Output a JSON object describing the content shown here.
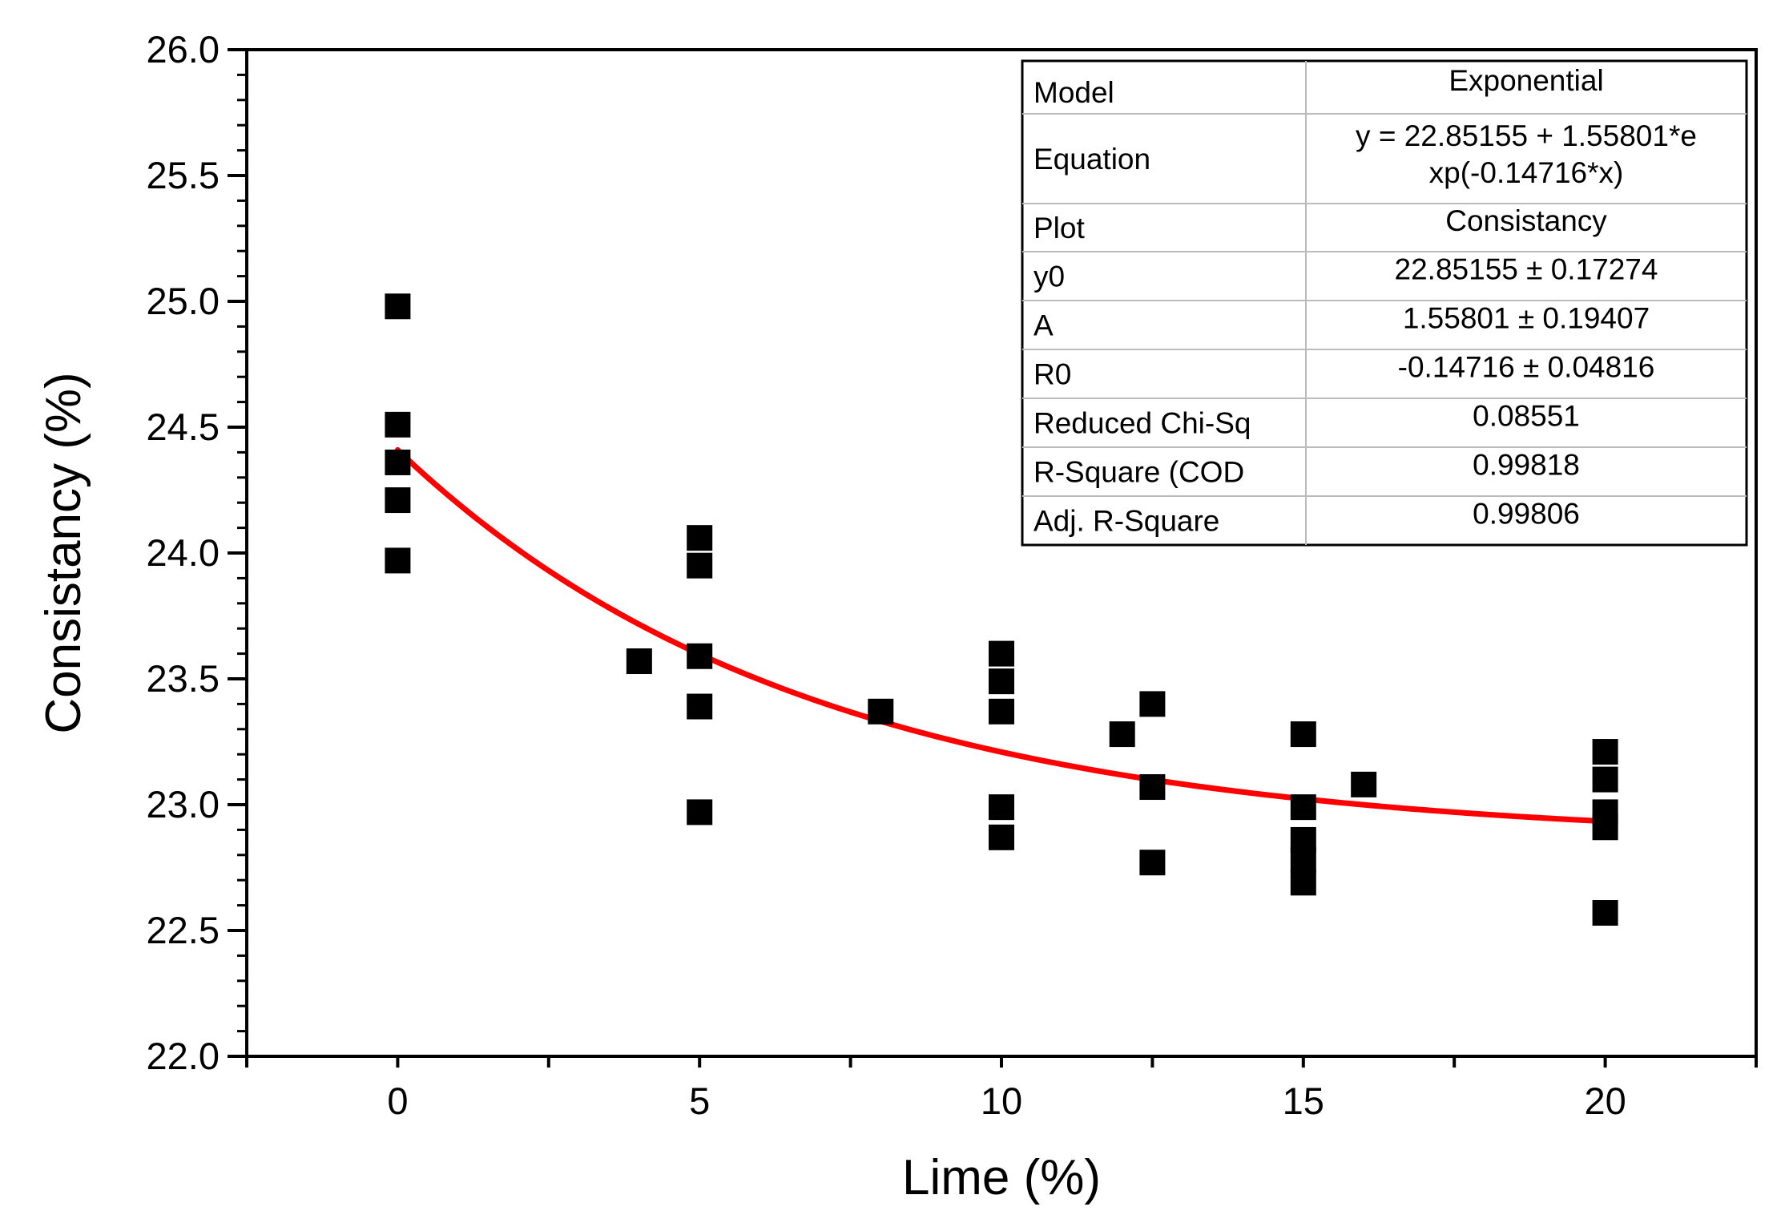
{
  "chart_data": {
    "type": "scatter",
    "title": "",
    "xlabel": "Lime (%)",
    "ylabel": "Consistancy (%)",
    "xlim": [
      -2.5,
      22.5
    ],
    "ylim": [
      22.0,
      26.0
    ],
    "xticks": [
      0,
      5,
      10,
      15,
      20
    ],
    "xtick_labels": [
      "0",
      "5",
      "10",
      "15",
      "20"
    ],
    "yticks": [
      22.0,
      22.5,
      23.0,
      23.5,
      24.0,
      24.5,
      25.0,
      25.5,
      26.0
    ],
    "ytick_labels": [
      "22.0",
      "22.5",
      "23.0",
      "23.5",
      "24.0",
      "24.5",
      "25.0",
      "25.5",
      "26.0"
    ],
    "grid": false,
    "series": [
      {
        "name": "Consistancy",
        "type": "scatter",
        "marker": "square",
        "color": "#000000",
        "points": [
          {
            "x": 0,
            "y": 24.98
          },
          {
            "x": 0,
            "y": 24.51
          },
          {
            "x": 0,
            "y": 24.36
          },
          {
            "x": 0,
            "y": 24.21
          },
          {
            "x": 0,
            "y": 23.97
          },
          {
            "x": 4,
            "y": 23.57
          },
          {
            "x": 5,
            "y": 24.06
          },
          {
            "x": 5,
            "y": 23.95
          },
          {
            "x": 5,
            "y": 23.59
          },
          {
            "x": 5,
            "y": 23.39
          },
          {
            "x": 5,
            "y": 22.97
          },
          {
            "x": 8,
            "y": 23.37
          },
          {
            "x": 10,
            "y": 23.6
          },
          {
            "x": 10,
            "y": 23.49
          },
          {
            "x": 10,
            "y": 23.37
          },
          {
            "x": 10,
            "y": 22.99
          },
          {
            "x": 10,
            "y": 22.87
          },
          {
            "x": 12,
            "y": 23.28
          },
          {
            "x": 12.5,
            "y": 23.4
          },
          {
            "x": 12.5,
            "y": 23.07
          },
          {
            "x": 12.5,
            "y": 22.77
          },
          {
            "x": 15,
            "y": 23.28
          },
          {
            "x": 15,
            "y": 22.99
          },
          {
            "x": 15,
            "y": 22.86
          },
          {
            "x": 15,
            "y": 22.78
          },
          {
            "x": 15,
            "y": 22.69
          },
          {
            "x": 16,
            "y": 23.08
          },
          {
            "x": 20,
            "y": 23.21
          },
          {
            "x": 20,
            "y": 23.1
          },
          {
            "x": 20,
            "y": 22.97
          },
          {
            "x": 20,
            "y": 22.91
          },
          {
            "x": 20,
            "y": 22.57
          }
        ]
      },
      {
        "name": "Exponential fit",
        "type": "line",
        "color": "#ff0000",
        "function": {
          "y0": 22.85155,
          "A": 1.55801,
          "R0": -0.14716
        },
        "x_range": [
          0,
          20
        ]
      }
    ],
    "legend": "none",
    "stats_table": {
      "position": "top-right",
      "rows": [
        {
          "label": "Model",
          "value": "Exponential"
        },
        {
          "label": "Equation",
          "value_lines": [
            "y = 22.85155 + 1.55801*e",
            "xp(-0.14716*x)"
          ]
        },
        {
          "label": "Plot",
          "value": "Consistancy"
        },
        {
          "label": "y0",
          "value": "22.85155 ± 0.17274"
        },
        {
          "label": "A",
          "value": "1.55801 ± 0.19407"
        },
        {
          "label": "R0",
          "value": "-0.14716 ± 0.04816"
        },
        {
          "label": "Reduced Chi-Sq",
          "value": "0.08551"
        },
        {
          "label": "R-Square (COD",
          "value": "0.99818"
        },
        {
          "label": "Adj. R-Square",
          "value": "0.99806"
        }
      ]
    }
  }
}
